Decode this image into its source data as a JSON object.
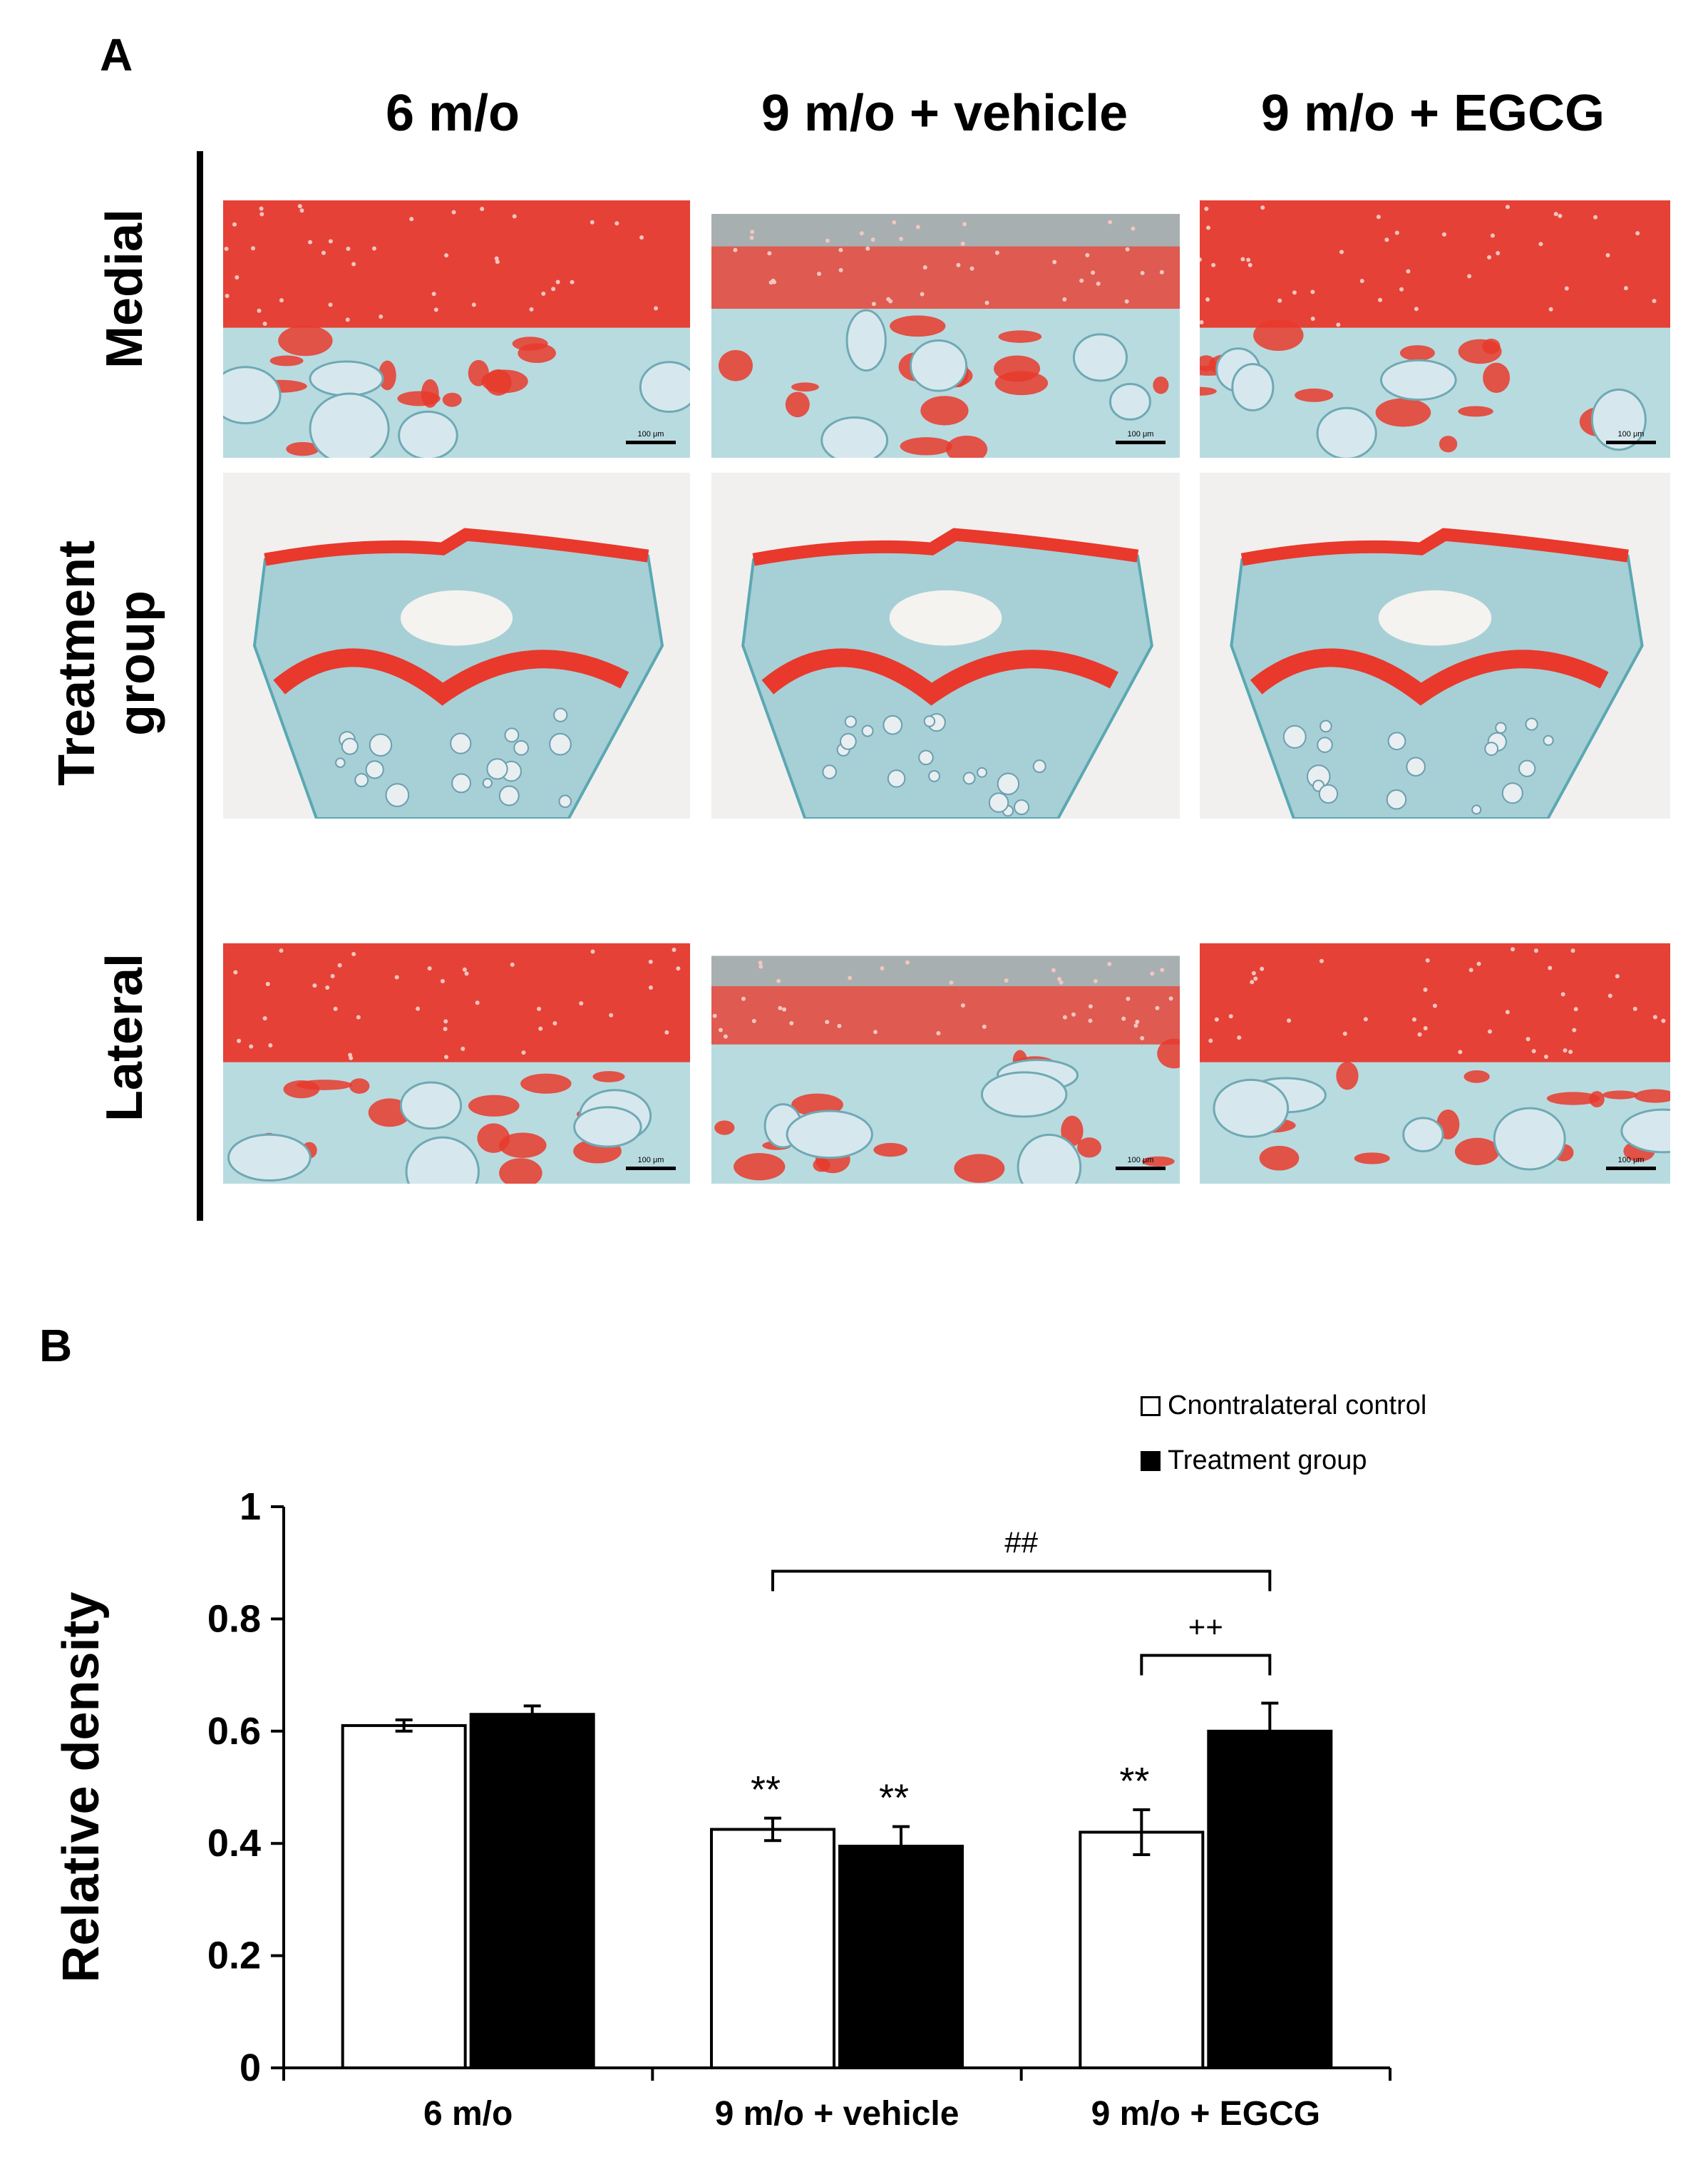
{
  "panel_a": {
    "label": "A",
    "columns": [
      "6 m/o",
      "9 m/o + vehicle",
      "9 m/o + EGCG"
    ],
    "rows": [
      {
        "label": "Medial"
      },
      {
        "label": "Treatment\ngroup",
        "line1": "Treatment",
        "line2": "group"
      },
      {
        "label": "Lateral"
      }
    ],
    "scale_bar_label": "100 μm",
    "tile_kinds": [
      "cartilage",
      "joint",
      "cartilage"
    ],
    "colors": {
      "safranin_red": "#e8392c",
      "fast_green": "#8fd3d9",
      "background": "#f1f0ef"
    }
  },
  "panel_b": {
    "label": "B",
    "legend": {
      "items": [
        {
          "label": "Cnontralateral control",
          "color": "#ffffff"
        },
        {
          "label": "Treatment group",
          "color": "#000000"
        }
      ]
    }
  },
  "chart_data": {
    "type": "bar",
    "categories": [
      "6 m/o",
      "9 m/o + vehicle",
      "9 m/o + EGCG"
    ],
    "series": [
      {
        "name": "Cnontralateral control",
        "values": [
          0.61,
          0.425,
          0.42
        ],
        "errors": [
          0.01,
          0.02,
          0.04
        ],
        "color": "#ffffff"
      },
      {
        "name": "Treatment group",
        "values": [
          0.63,
          0.395,
          0.6
        ],
        "errors": [
          0.015,
          0.035,
          0.05
        ],
        "color": "#000000"
      }
    ],
    "ylabel": "Relative density",
    "xlabel": "",
    "ylim": [
      0,
      1
    ],
    "yticks": [
      0,
      0.2,
      0.4,
      0.6,
      0.8,
      1
    ],
    "ytick_labels": [
      "0",
      "0.2",
      "0.4",
      "0.6",
      "0.8",
      "1"
    ],
    "grid": false,
    "legend_position": "top-right",
    "annotations": {
      "stars": [
        {
          "text": "**",
          "category": 1,
          "series": 0
        },
        {
          "text": "**",
          "category": 1,
          "series": 1
        },
        {
          "text": "**",
          "category": 2,
          "series": 0
        }
      ],
      "brackets": [
        {
          "text": "##",
          "from": {
            "category": 1,
            "series": 0
          },
          "to": {
            "category": 2,
            "series": 1
          },
          "level": 0.885
        },
        {
          "text": "++",
          "from": {
            "category": 2,
            "series": 0
          },
          "to": {
            "category": 2,
            "series": 1
          },
          "level": 0.735
        }
      ]
    }
  }
}
